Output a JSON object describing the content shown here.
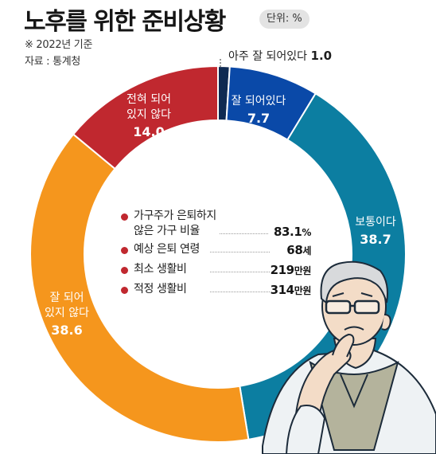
{
  "header": {
    "title": "노후를 위한 준비상황",
    "unit": "단위: %",
    "note": "※ 2022년 기준",
    "source": "자료 : 통계청"
  },
  "stats": [
    {
      "label": "가구주가 은퇴하지\n않은 가구 비율",
      "value": "83.1",
      "unit": "%"
    },
    {
      "label": "예상 은퇴 연령",
      "value": "68",
      "unit": "세"
    },
    {
      "label": "최소 생활비",
      "value": "219",
      "unit": "만원"
    },
    {
      "label": "적정 생활비",
      "value": "314",
      "unit": "만원"
    }
  ],
  "chart_data": {
    "type": "pie",
    "donut": true,
    "title": "노후를 위한 준비상황",
    "unit": "%",
    "slices": [
      {
        "label": "아주 잘 되어있다",
        "value": 1.0,
        "color": "#0f2a52"
      },
      {
        "label": "잘 되어있다",
        "value": 7.7,
        "color": "#0a49a8"
      },
      {
        "label": "보통이다",
        "value": 38.7,
        "color": "#0c7ea1"
      },
      {
        "label": "잘 되어 있지 않다",
        "value": 38.6,
        "color": "#f5961d"
      },
      {
        "label": "전혀 되어 있지 않다",
        "value": 14.0,
        "color": "#c0282f"
      }
    ]
  },
  "illustration": "elderly-man-thinking"
}
